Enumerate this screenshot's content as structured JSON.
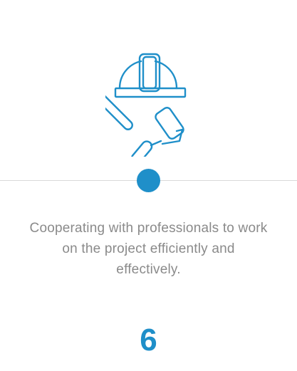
{
  "step": {
    "icon": "hardhat-tools-icon",
    "description": "Cooperating with professionals to work on the project efficiently and effectively.",
    "number": "6"
  },
  "colors": {
    "accent": "#1f8fc9",
    "text": "#8a8a8a",
    "line": "#d9d9d9"
  }
}
